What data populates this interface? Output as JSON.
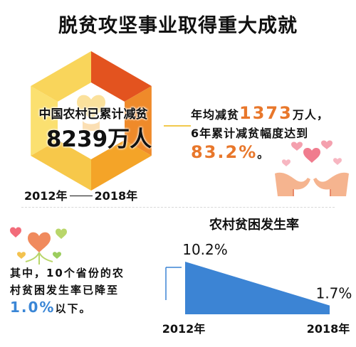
{
  "title": "脱贫攻坚事业取得重大成就",
  "rural_reduction": {
    "label": "中国农村已累计减贫",
    "value": "8239万人",
    "period_start": "2012年",
    "period_end": "2018年"
  },
  "annual": {
    "prefix": "年均减贫",
    "value": "1373",
    "suffix": "万人，",
    "line2": "6年累计减贫幅度达到",
    "rate": "83.2%",
    "rate_suffix": "。"
  },
  "province_note": {
    "line1": "其中，10个省份的农",
    "line2": "村贫困发生率已降至",
    "value": "1.0%",
    "suffix": "以下。"
  },
  "colors": {
    "orange": "#e8772b",
    "blue": "#3a86d6",
    "area_fill": "#3c84d4",
    "hex_colors": [
      "#e3531f",
      "#ef8a2a",
      "#f4a428",
      "#f7c84a",
      "#fbe070",
      "#f9d55b"
    ]
  },
  "chart_data": {
    "type": "area",
    "title": "农村贫困发生率",
    "x": [
      "2012年",
      "2018年"
    ],
    "series": [
      {
        "values": [
          10.2,
          1.7
        ],
        "labels": [
          "10.2%",
          "1.7%"
        ]
      }
    ],
    "ylim": [
      0,
      10.2
    ],
    "grid": false,
    "legend": "none"
  }
}
